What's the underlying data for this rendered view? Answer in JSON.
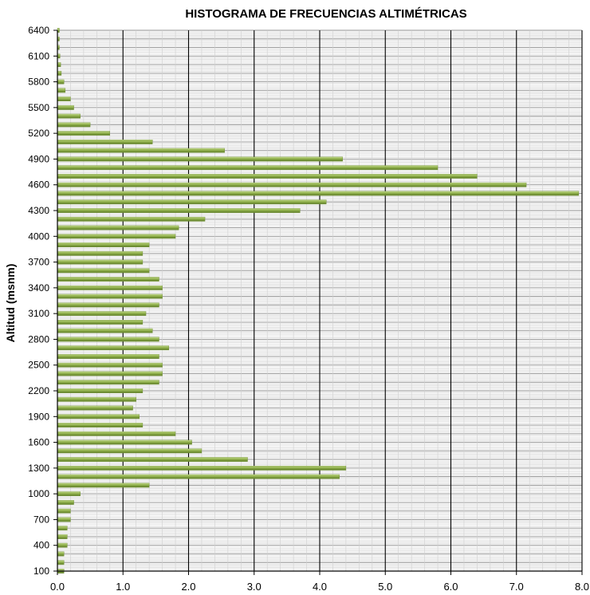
{
  "chart_data": {
    "type": "bar",
    "orientation": "horizontal",
    "title": "HISTOGRAMA DE FRECUENCIAS ALTIMÉTRICAS",
    "xlabel": "",
    "ylabel": "Altitud (msnm)",
    "xlim": [
      0,
      8
    ],
    "ylim": [
      100,
      6400
    ],
    "x_ticks": [
      "0.0",
      "1.0",
      "2.0",
      "3.0",
      "4.0",
      "5.0",
      "6.0",
      "7.0",
      "8.0"
    ],
    "y_ticks": [
      "100",
      "400",
      "700",
      "1000",
      "1300",
      "1600",
      "1900",
      "2200",
      "2500",
      "2800",
      "3100",
      "3400",
      "3700",
      "4000",
      "4300",
      "4600",
      "4900",
      "5200",
      "5500",
      "5800",
      "6100",
      "6400"
    ],
    "grid": true,
    "bar_color": "#8fb04a",
    "categories": [
      100,
      200,
      300,
      400,
      500,
      600,
      700,
      800,
      900,
      1000,
      1100,
      1200,
      1300,
      1400,
      1500,
      1600,
      1700,
      1800,
      1900,
      2000,
      2100,
      2200,
      2300,
      2400,
      2500,
      2600,
      2700,
      2800,
      2900,
      3000,
      3100,
      3200,
      3300,
      3400,
      3500,
      3600,
      3700,
      3800,
      3900,
      4000,
      4100,
      4200,
      4300,
      4400,
      4500,
      4600,
      4700,
      4800,
      4900,
      5000,
      5100,
      5200,
      5300,
      5400,
      5500,
      5600,
      5700,
      5800,
      5900,
      6000,
      6100,
      6200,
      6300,
      6400
    ],
    "values": [
      0.1,
      0.1,
      0.1,
      0.15,
      0.15,
      0.15,
      0.2,
      0.2,
      0.25,
      0.35,
      1.4,
      4.3,
      4.4,
      2.9,
      2.2,
      2.05,
      1.8,
      1.3,
      1.25,
      1.15,
      1.2,
      1.3,
      1.55,
      1.6,
      1.6,
      1.55,
      1.7,
      1.55,
      1.45,
      1.3,
      1.35,
      1.55,
      1.6,
      1.6,
      1.55,
      1.4,
      1.3,
      1.3,
      1.4,
      1.8,
      1.85,
      2.25,
      3.7,
      4.1,
      7.95,
      7.15,
      6.4,
      5.8,
      4.35,
      2.55,
      1.45,
      0.8,
      0.5,
      0.35,
      0.25,
      0.2,
      0.12,
      0.1,
      0.06,
      0.05,
      0.04,
      0.03,
      0.03,
      0.03
    ]
  }
}
